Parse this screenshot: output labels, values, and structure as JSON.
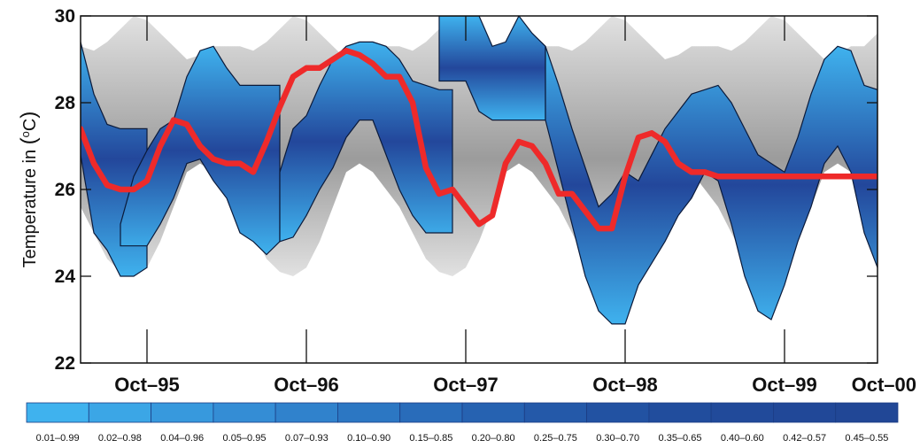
{
  "chart_data": {
    "type": "area",
    "title": "",
    "ylabel": "Temperature in (°C)",
    "ylabel_parts": {
      "pre": "Temperature in ",
      "sup": "o",
      "post": "C",
      "open": "(",
      "close": ")"
    },
    "xlabel": "",
    "ylim": [
      22,
      30
    ],
    "xlim": [
      0,
      60
    ],
    "yticks": [
      22,
      24,
      26,
      28,
      30
    ],
    "xticks": [
      {
        "x": 5,
        "label": "Oct–95"
      },
      {
        "x": 17,
        "label": "Oct–96"
      },
      {
        "x": 29,
        "label": "Oct–97"
      },
      {
        "x": 41,
        "label": "Oct–98"
      },
      {
        "x": 53,
        "label": "Oct–99"
      },
      {
        "x": 65,
        "label": "Oct–00"
      }
    ],
    "grid": false,
    "climatology_band": {
      "x": [
        0,
        1,
        2,
        3,
        4,
        5,
        6,
        7,
        8,
        9,
        10,
        11,
        12,
        13,
        14,
        15,
        16,
        17,
        18,
        19,
        20,
        21,
        22,
        23,
        24,
        25,
        26,
        27,
        28,
        29,
        30,
        31,
        32,
        33,
        34,
        35,
        36,
        37,
        38,
        39,
        40,
        41,
        42,
        43,
        44,
        45,
        46,
        47,
        48,
        49,
        50,
        51,
        52,
        53,
        54,
        55,
        56,
        57,
        58,
        59,
        60
      ],
      "upper": [
        29.3,
        29.2,
        29.4,
        29.7,
        30.0,
        29.9,
        29.6,
        29.3,
        29.0,
        29.1,
        29.3,
        29.3,
        29.3,
        29.2,
        29.4,
        29.7,
        30.0,
        29.9,
        29.6,
        29.3,
        29.0,
        29.1,
        29.3,
        29.3,
        29.3,
        29.2,
        29.4,
        29.7,
        30.0,
        29.9,
        29.6,
        29.3,
        29.0,
        29.1,
        29.3,
        29.3,
        29.3,
        29.2,
        29.4,
        29.7,
        30.0,
        29.9,
        29.6,
        29.3,
        29.0,
        29.1,
        29.3,
        29.3,
        29.3,
        29.2,
        29.4,
        29.7,
        30.0,
        29.9,
        29.6,
        29.3,
        29.0,
        29.1,
        29.3,
        29.3,
        29.6
      ],
      "lower": [
        25.6,
        25.0,
        24.4,
        24.1,
        24.0,
        24.2,
        24.8,
        25.6,
        26.4,
        26.6,
        26.4,
        26.0,
        25.6,
        25.0,
        24.4,
        24.1,
        24.0,
        24.2,
        24.8,
        25.6,
        26.4,
        26.6,
        26.4,
        26.0,
        25.6,
        25.0,
        24.4,
        24.1,
        24.0,
        24.2,
        24.8,
        25.6,
        26.4,
        26.6,
        26.4,
        26.0,
        25.6,
        25.0,
        24.4,
        24.1,
        24.0,
        24.2,
        24.8,
        25.6,
        26.4,
        26.6,
        26.4,
        26.0,
        25.6,
        25.0,
        24.4,
        24.1,
        24.0,
        24.2,
        24.8,
        25.6,
        26.4,
        26.6,
        26.4,
        26.0,
        25.0
      ]
    },
    "forecast_segments": [
      {
        "x": [
          0,
          1,
          2,
          3,
          4,
          5
        ],
        "upper": [
          29.4,
          28.2,
          27.5,
          27.4,
          27.4,
          27.4
        ],
        "lower": [
          26.8,
          25.0,
          24.6,
          24.0,
          24.0,
          24.2
        ]
      },
      {
        "x": [
          3,
          4,
          5,
          6,
          7,
          8,
          9,
          10,
          11,
          12,
          13,
          14,
          15
        ],
        "upper": [
          25.2,
          26.3,
          26.9,
          27.4,
          27.6,
          28.6,
          29.2,
          29.3,
          28.8,
          28.4,
          28.4,
          28.4,
          28.4
        ],
        "lower": [
          24.7,
          24.7,
          24.7,
          25.2,
          25.8,
          26.6,
          26.7,
          26.2,
          25.8,
          25.0,
          24.8,
          24.5,
          24.8
        ]
      },
      {
        "x": [
          15,
          16,
          17,
          18,
          19,
          20,
          21,
          22,
          23,
          24,
          25,
          26,
          27,
          28
        ],
        "upper": [
          26.4,
          27.4,
          27.7,
          28.4,
          29.0,
          29.3,
          29.4,
          29.4,
          29.3,
          29.0,
          28.5,
          28.4,
          28.3,
          28.3
        ],
        "lower": [
          24.8,
          24.9,
          25.4,
          26.0,
          26.5,
          27.2,
          27.6,
          27.6,
          26.8,
          26.0,
          25.4,
          25.0,
          25.0,
          25.0
        ]
      },
      {
        "x": [
          27,
          28,
          29,
          30,
          31,
          32,
          33,
          34,
          35
        ],
        "upper": [
          30.0,
          30.0,
          30.0,
          30.0,
          29.3,
          29.4,
          30.0,
          29.6,
          29.3
        ],
        "lower": [
          28.5,
          28.5,
          28.5,
          27.8,
          27.6,
          27.6,
          27.6,
          27.6,
          27.6
        ]
      },
      {
        "x": [
          35,
          36,
          37,
          38,
          39,
          40,
          41,
          42,
          43,
          44,
          45,
          46,
          47,
          48,
          49,
          50,
          51,
          52,
          53,
          54,
          55,
          56,
          57,
          58,
          59,
          60
        ],
        "upper": [
          29.3,
          28.4,
          27.4,
          26.5,
          25.6,
          25.9,
          26.4,
          26.2,
          26.8,
          27.4,
          27.8,
          28.2,
          28.3,
          28.4,
          28.0,
          27.4,
          26.8,
          26.6,
          26.4,
          27.2,
          28.2,
          29.0,
          29.3,
          29.2,
          28.4,
          28.3
        ],
        "lower": [
          27.6,
          26.4,
          25.2,
          24.0,
          23.2,
          22.9,
          22.9,
          23.8,
          24.3,
          24.8,
          25.4,
          25.8,
          26.4,
          26.2,
          25.2,
          24.0,
          23.2,
          23.0,
          23.8,
          24.8,
          25.6,
          26.6,
          27.0,
          26.4,
          25.0,
          24.2
        ]
      }
    ],
    "series": [
      {
        "name": "",
        "x": [
          0,
          1,
          2,
          3,
          4,
          5,
          6,
          7,
          8,
          9,
          10,
          11,
          12,
          13,
          14,
          15,
          16,
          17,
          18,
          19,
          20,
          21,
          22,
          23,
          24,
          25,
          26,
          27,
          28,
          29,
          30,
          31,
          32,
          33,
          34,
          35,
          36,
          37,
          38,
          39,
          40,
          41,
          42,
          43,
          44,
          45,
          46,
          47,
          48,
          49,
          50,
          51,
          52,
          53,
          54,
          55,
          56,
          57,
          58,
          59,
          60
        ],
        "values": [
          27.4,
          26.6,
          26.1,
          26.0,
          26.0,
          26.2,
          27.0,
          27.6,
          27.5,
          27.0,
          26.7,
          26.6,
          26.6,
          26.4,
          27.1,
          27.9,
          28.6,
          28.8,
          28.8,
          29.0,
          29.2,
          29.1,
          28.9,
          28.6,
          28.6,
          28.0,
          26.5,
          25.9,
          26.0,
          25.6,
          25.2,
          25.4,
          26.6,
          27.1,
          27.0,
          26.6,
          25.9,
          25.9,
          25.5,
          25.1,
          25.1,
          26.3,
          27.2,
          27.3,
          27.1,
          26.6,
          26.4,
          26.4,
          26.3,
          26.3,
          26.3,
          26.3,
          26.3,
          26.3,
          26.3,
          26.3,
          26.3,
          26.3,
          26.3,
          26.3,
          26.3
        ]
      }
    ],
    "colors": {
      "climatology": "#c8c8c8",
      "climatology_dark": "#8a8a8a",
      "band_outer": "#3fb2ee",
      "band_inner": "#23479b",
      "median": "#ee2a2a"
    },
    "legend": {
      "placement": "bottom",
      "items": [
        "0.01–0.99",
        "0.02–0.98",
        "0.04–0.96",
        "0.05–0.95",
        "0.07–0.93",
        "0.10–0.90",
        "0.15–0.85",
        "0.20–0.80",
        "0.25–0.75",
        "0.30–0.70",
        "0.35–0.65",
        "0.40–0.60",
        "0.42–0.57",
        "0.45–0.55"
      ],
      "colors": [
        "#3fb2ee",
        "#3ba6e6",
        "#3799dd",
        "#348dd5",
        "#3082cc",
        "#2c77c3",
        "#296cba",
        "#2662b1",
        "#2459a9",
        "#2252a2",
        "#214d9d",
        "#214a9a",
        "#214898",
        "#214796"
      ]
    }
  }
}
